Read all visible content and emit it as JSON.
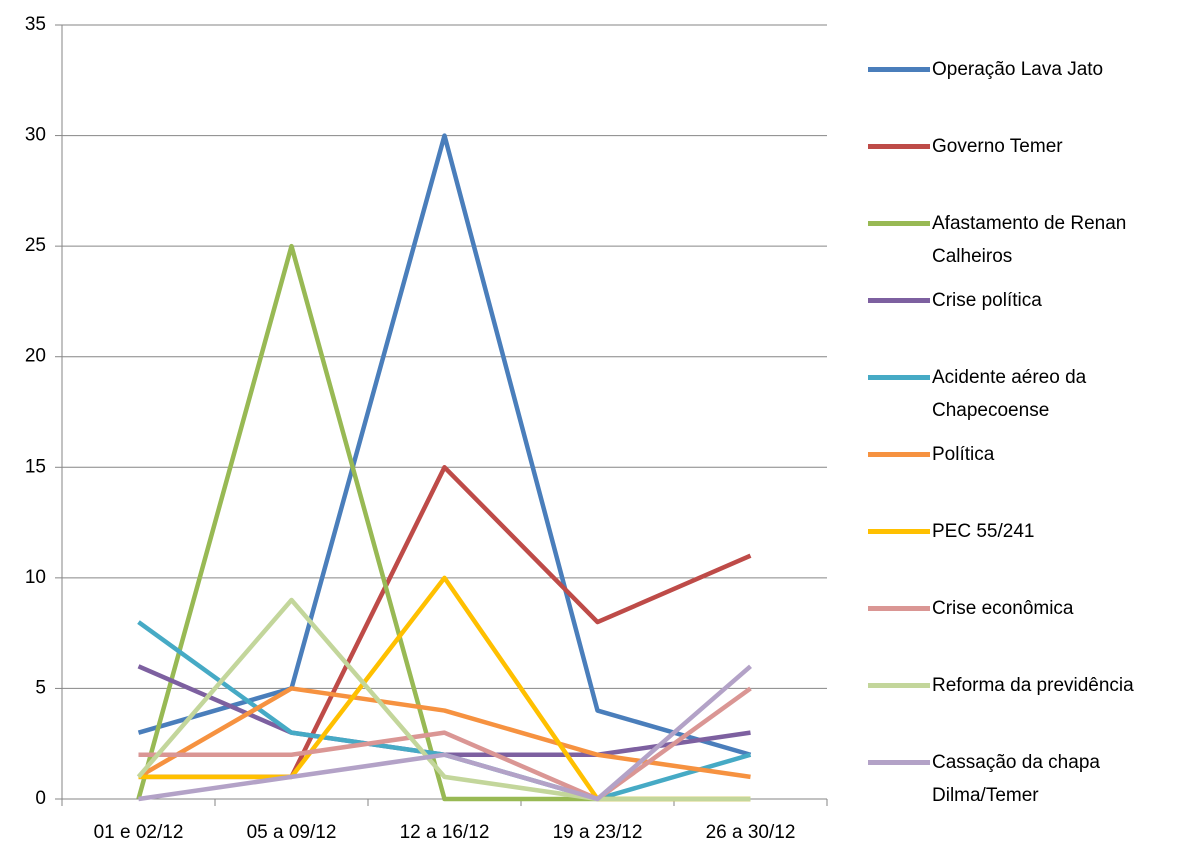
{
  "chart_data": {
    "type": "line",
    "categories": [
      "01 e 02/12",
      "05 a 09/12",
      "12 a 16/12",
      "19 a 23/12",
      "26 a 30/12"
    ],
    "series": [
      {
        "name": "Operação Lava Jato",
        "color": "#4a7ebb",
        "values": [
          3,
          5,
          30,
          4,
          2
        ]
      },
      {
        "name": "Governo Temer",
        "color": "#be4b48",
        "values": [
          1,
          1,
          15,
          8,
          11
        ]
      },
      {
        "name": "Afastamento de Renan Calheiros",
        "color": "#98b954",
        "values": [
          0,
          25,
          0,
          0,
          0
        ]
      },
      {
        "name": "Crise política",
        "color": "#7d60a0",
        "values": [
          6,
          3,
          2,
          2,
          3
        ]
      },
      {
        "name": "Acidente aéreo da Chapecoense",
        "color": "#46aac5",
        "values": [
          8,
          3,
          2,
          0,
          2
        ]
      },
      {
        "name": "Política",
        "color": "#f69240",
        "values": [
          1,
          5,
          4,
          2,
          1
        ]
      },
      {
        "name": "PEC 55/241",
        "color": "#ffc000",
        "values": [
          1,
          1,
          10,
          0,
          0
        ]
      },
      {
        "name": "Crise econômica",
        "color": "#da9694",
        "values": [
          2,
          2,
          3,
          0,
          5
        ]
      },
      {
        "name": "Reforma da previdência",
        "color": "#c3d69b",
        "values": [
          1,
          9,
          1,
          0,
          0
        ]
      },
      {
        "name": "Cassação da chapa Dilma/Temer",
        "color": "#b3a2c7",
        "values": [
          0,
          1,
          2,
          0,
          6
        ]
      }
    ],
    "ylim": [
      0,
      35
    ],
    "yticks": [
      0,
      5,
      10,
      15,
      20,
      25,
      30,
      35
    ],
    "grid": true
  }
}
